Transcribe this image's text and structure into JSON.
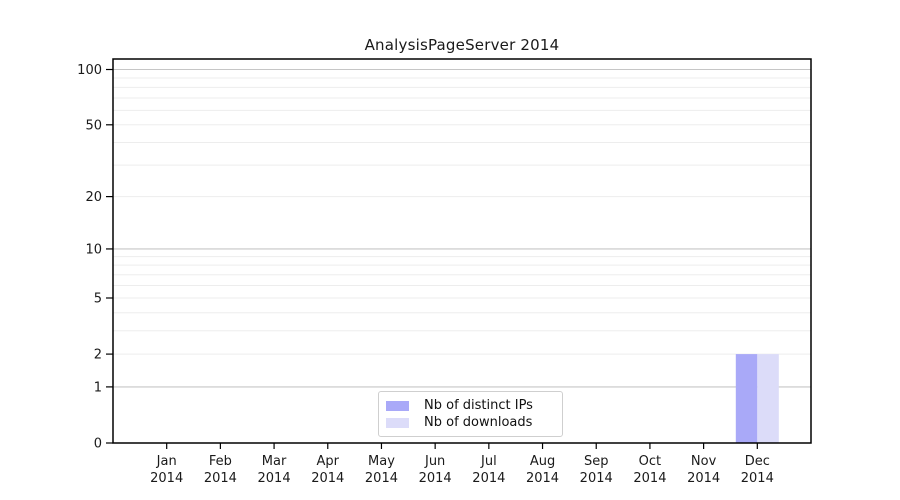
{
  "chart_data": {
    "type": "bar",
    "title": "AnalysisPageServer 2014",
    "categories": [
      "Jan",
      "Feb",
      "Mar",
      "Apr",
      "May",
      "Jun",
      "Jul",
      "Aug",
      "Sep",
      "Oct",
      "Nov",
      "Dec"
    ],
    "category_year": "2014",
    "series": [
      {
        "name": "Nb of distinct IPs",
        "color": "#a9a9f8",
        "values": [
          0,
          0,
          0,
          0,
          0,
          0,
          0,
          0,
          0,
          0,
          0,
          2
        ]
      },
      {
        "name": "Nb of downloads",
        "color": "#dcdcf9",
        "values": [
          0,
          0,
          0,
          0,
          0,
          0,
          0,
          0,
          0,
          0,
          0,
          2
        ]
      }
    ],
    "yscale": "log1p",
    "ylim": [
      0,
      114
    ],
    "ytick_labels": [
      0,
      1,
      2,
      5,
      10,
      20,
      50,
      100
    ],
    "yminor_grid": [
      2,
      3,
      4,
      5,
      6,
      7,
      8,
      9,
      20,
      30,
      40,
      50,
      60,
      70,
      80,
      90
    ],
    "ymajor_grid": [
      1,
      10,
      100
    ],
    "xlabel": "",
    "ylabel": "",
    "grid": "horizontal",
    "legend_position": "bottom-center-inside"
  },
  "colors": {
    "axis": "#000000",
    "tick_text": "#1a1a1a",
    "grid_minor": "#ededed",
    "grid_major": "#c6c6c6",
    "background": "#ffffff"
  }
}
